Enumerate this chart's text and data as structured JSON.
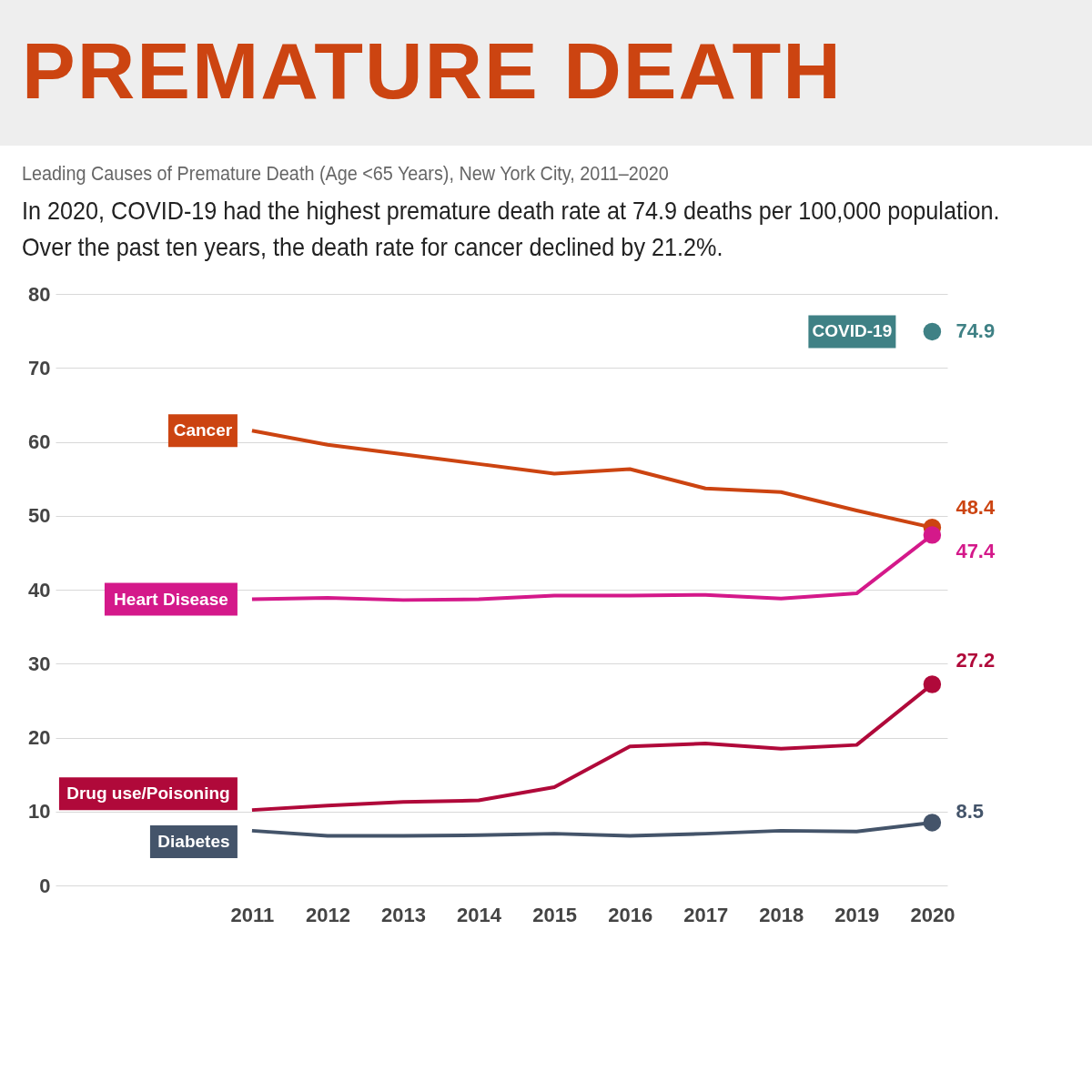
{
  "chart_data": {
    "type": "line",
    "title": "PREMATURE DEATH",
    "subtitle": "Leading Causes of Premature Death (Age <65 Years), New York City, 2011–2020",
    "annotations": [
      "In 2020, COVID-19 had the highest premature death rate at 74.9 deaths per 100,000 population. Over the past ten years, the death rate for cancer declined by 21.2%."
    ],
    "x": [
      2011,
      2012,
      2013,
      2014,
      2015,
      2016,
      2017,
      2018,
      2019,
      2020
    ],
    "xlim": [
      2008.4,
      2020.2
    ],
    "xticks": [
      2011,
      2012,
      2013,
      2014,
      2015,
      2016,
      2017,
      2018,
      2019,
      2020
    ],
    "ylim": [
      0,
      80
    ],
    "yticks": [
      0,
      10,
      20,
      30,
      40,
      50,
      60,
      70,
      80
    ],
    "grid": "y",
    "marker": "none",
    "line_style": "solid",
    "series": [
      {
        "name": "COVID-19",
        "type": "scatter",
        "marker": "circle",
        "color": "#3f8185",
        "values": [
          null,
          null,
          null,
          null,
          null,
          null,
          null,
          null,
          null,
          74.9
        ],
        "value_labels": [
          null,
          null,
          null,
          null,
          null,
          null,
          null,
          null,
          null,
          "74.9"
        ]
      },
      {
        "name": "Cancer",
        "color": "#cc4411",
        "values": [
          61.5,
          59.6,
          58.3,
          57.0,
          55.7,
          56.3,
          53.7,
          53.2,
          50.7,
          48.4
        ],
        "value_labels": [
          null,
          null,
          null,
          null,
          null,
          null,
          null,
          null,
          null,
          "48.4"
        ]
      },
      {
        "name": "Heart Disease",
        "color": "#d4198a",
        "values": [
          38.7,
          38.9,
          38.6,
          38.7,
          39.2,
          39.2,
          39.3,
          38.8,
          39.5,
          47.4
        ],
        "value_labels": [
          null,
          null,
          null,
          null,
          null,
          null,
          null,
          null,
          null,
          "47.4"
        ]
      },
      {
        "name": "Drug use/Poisoning",
        "color": "#b0093a",
        "values": [
          10.2,
          10.8,
          11.3,
          11.5,
          13.3,
          18.8,
          19.2,
          18.5,
          19.0,
          27.2
        ],
        "value_labels": [
          null,
          null,
          null,
          null,
          null,
          null,
          null,
          null,
          null,
          "27.2"
        ]
      },
      {
        "name": "Diabetes",
        "color": "#44546a",
        "values": [
          7.4,
          6.7,
          6.7,
          6.8,
          7.0,
          6.7,
          7.0,
          7.4,
          7.3,
          8.5
        ],
        "value_labels": [
          null,
          null,
          null,
          null,
          null,
          null,
          null,
          null,
          null,
          "8.5"
        ]
      }
    ]
  }
}
